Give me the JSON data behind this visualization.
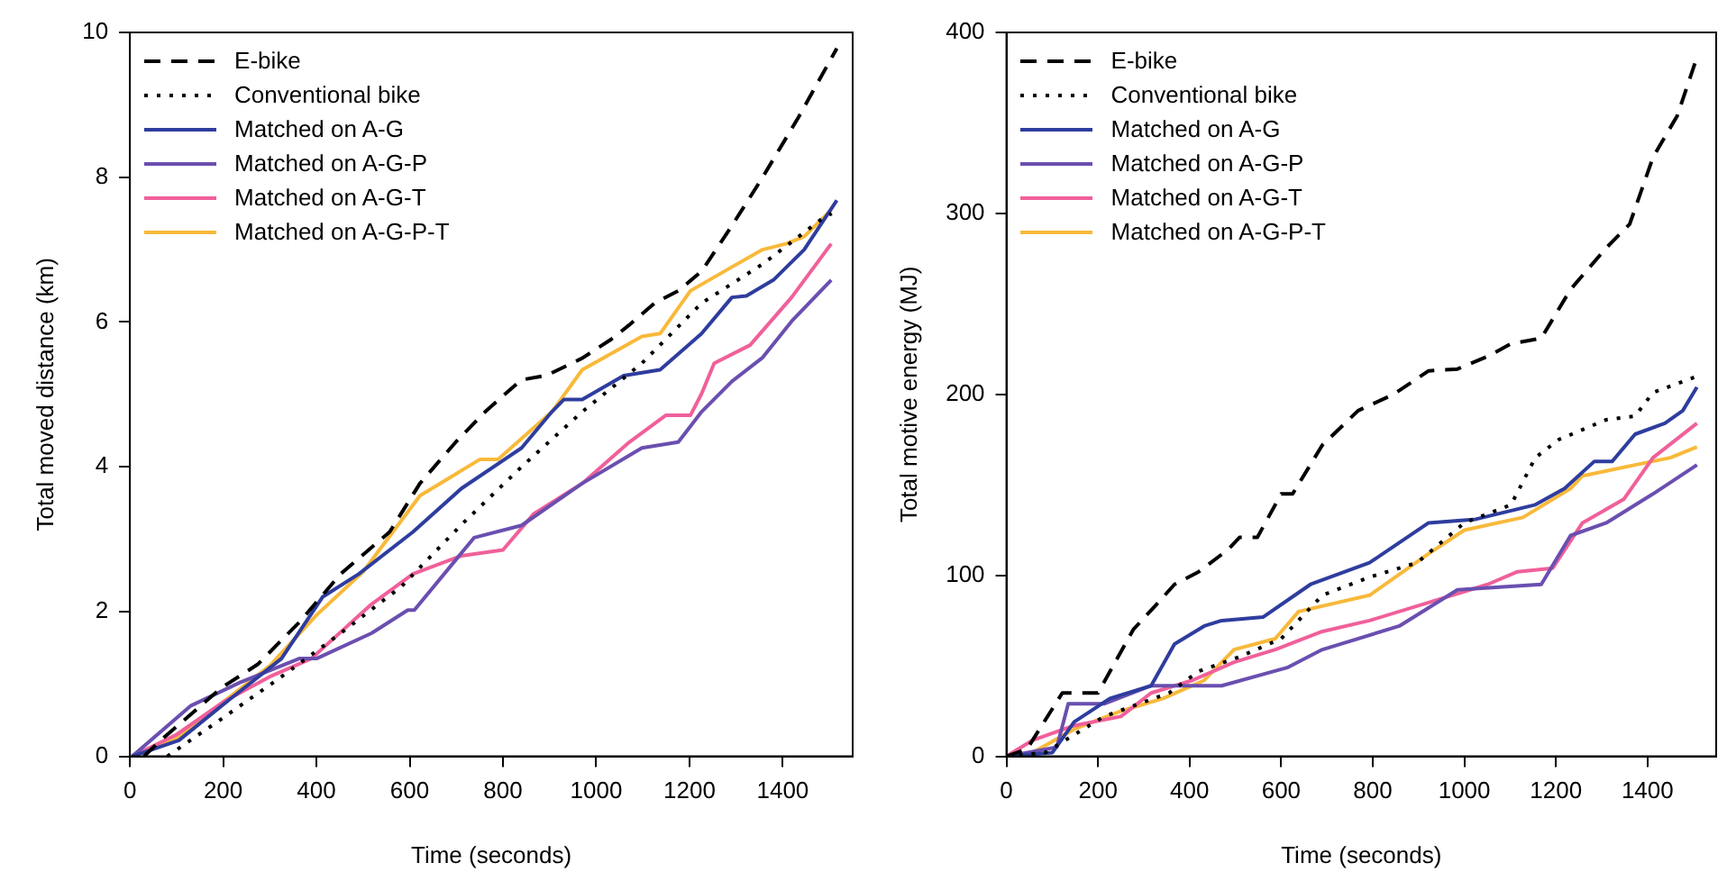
{
  "chart_data": [
    {
      "type": "line",
      "xlabel": "Time (seconds)",
      "ylabel": "Total moved distance (km)",
      "xlim": [
        0,
        1550
      ],
      "ylim": [
        0,
        10
      ],
      "xticks": [
        0,
        200,
        400,
        600,
        800,
        1000,
        1200,
        1400
      ],
      "yticks": [
        0,
        2,
        4,
        6,
        8,
        10
      ],
      "grid": false,
      "legend": "top left",
      "marker": "none",
      "series": [
        {
          "name": "E-bike",
          "color": "#000000",
          "line_style": "dashed",
          "x": [
            30,
            66,
            197,
            274,
            363,
            452,
            557,
            622,
            700,
            762,
            839,
            893,
            970,
            1032,
            1071,
            1125,
            1176,
            1226,
            1291,
            1357,
            1434,
            1516
          ],
          "values": [
            0,
            0.22,
            0.95,
            1.27,
            1.85,
            2.52,
            3.1,
            3.77,
            4.35,
            4.76,
            5.2,
            5.26,
            5.5,
            5.76,
            5.96,
            6.26,
            6.43,
            6.7,
            7.33,
            8.0,
            8.83,
            9.78
          ]
        },
        {
          "name": "Conventional bike",
          "color": "#000000",
          "line_style": "dotted",
          "x": [
            80,
            197,
            325,
            452,
            583,
            711,
            840,
            970,
            1098,
            1226,
            1357,
            1485,
            1505
          ],
          "values": [
            0,
            0.52,
            1.1,
            1.7,
            2.35,
            3.2,
            4.0,
            4.76,
            5.43,
            6.26,
            6.8,
            7.43,
            7.5
          ]
        },
        {
          "name": "Matched on A-G",
          "color": "#2e3d9e",
          "line_style": "solid",
          "x": [
            5,
            105,
            197,
            325,
            413,
            491,
            607,
            711,
            840,
            905,
            931,
            970,
            1059,
            1137,
            1226,
            1291,
            1322,
            1380,
            1446,
            1516
          ],
          "values": [
            0,
            0.22,
            0.7,
            1.35,
            2.2,
            2.52,
            3.1,
            3.7,
            4.26,
            4.76,
            4.93,
            4.93,
            5.26,
            5.34,
            5.84,
            6.34,
            6.36,
            6.58,
            7.0,
            7.68
          ]
        },
        {
          "name": "Matched on A-G-P",
          "color": "#6a4fb0",
          "line_style": "solid",
          "x": [
            5,
            131,
            236,
            363,
            400,
            518,
            596,
            610,
            738,
            840,
            970,
            1098,
            1176,
            1226,
            1291,
            1357,
            1419,
            1504
          ],
          "values": [
            0,
            0.7,
            1.02,
            1.35,
            1.35,
            1.7,
            2.02,
            2.02,
            3.02,
            3.19,
            3.77,
            4.26,
            4.34,
            4.76,
            5.18,
            5.51,
            6.01,
            6.58
          ]
        },
        {
          "name": "Matched on A-G-T",
          "color": "#f0609a",
          "line_style": "solid",
          "x": [
            5,
            100,
            200,
            300,
            389,
            518,
            607,
            711,
            800,
            866,
            970,
            1071,
            1149,
            1202,
            1226,
            1253,
            1330,
            1419,
            1504
          ],
          "values": [
            0,
            0.3,
            0.75,
            1.1,
            1.35,
            2.1,
            2.52,
            2.77,
            2.85,
            3.35,
            3.77,
            4.34,
            4.71,
            4.71,
            5.01,
            5.43,
            5.68,
            6.34,
            7.08
          ]
        },
        {
          "name": "Matched on A-G-P-T",
          "color": "#f8b93a",
          "line_style": "solid",
          "x": [
            5,
            100,
            200,
            300,
            400,
            500,
            622,
            750,
            789,
            905,
            970,
            1098,
            1137,
            1202,
            1291,
            1357,
            1407,
            1446,
            1504
          ],
          "values": [
            0,
            0.25,
            0.75,
            1.25,
            1.95,
            2.55,
            3.6,
            4.1,
            4.1,
            4.76,
            5.34,
            5.8,
            5.84,
            6.43,
            6.76,
            7.0,
            7.08,
            7.18,
            7.55
          ]
        }
      ]
    },
    {
      "type": "line",
      "xlabel": "Time (seconds)",
      "ylabel": "Total motive energy (MJ)",
      "xlim": [
        0,
        1550
      ],
      "ylim": [
        0,
        400
      ],
      "xticks": [
        0,
        200,
        400,
        600,
        800,
        1000,
        1200,
        1400
      ],
      "yticks": [
        0,
        100,
        200,
        300,
        400
      ],
      "grid": false,
      "legend": "top left",
      "marker": "none",
      "series": [
        {
          "name": "E-bike",
          "color": "#000000",
          "line_style": "dashed",
          "x": [
            0,
            45,
            122,
            200,
            277,
            328,
            367,
            420,
            483,
            509,
            548,
            600,
            625,
            690,
            768,
            845,
            922,
            985,
            1051,
            1102,
            1168,
            1232,
            1310,
            1361,
            1412,
            1465,
            1505
          ],
          "values": [
            0,
            4,
            35,
            35,
            70,
            84,
            95,
            102,
            114,
            121,
            121,
            145,
            145,
            172,
            191,
            200,
            213,
            214,
            221,
            228,
            231,
            258,
            281,
            294,
            331,
            354,
            384
          ]
        },
        {
          "name": "Conventional bike",
          "color": "#000000",
          "line_style": "dotted",
          "x": [
            0,
            84,
            213,
            355,
            420,
            509,
            600,
            690,
            793,
            897,
            1000,
            1102,
            1155,
            1206,
            1310,
            1373,
            1412,
            1508
          ],
          "values": [
            0,
            2,
            22,
            35,
            47,
            55,
            65,
            89,
            99,
            107,
            129,
            139,
            165,
            175,
            186,
            188,
            201,
            210
          ]
        },
        {
          "name": "Matched on A-G",
          "color": "#2e3d9e",
          "line_style": "solid",
          "x": [
            0,
            100,
            148,
            226,
            316,
            367,
            432,
            470,
            561,
            664,
            793,
            922,
            1025,
            1155,
            1219,
            1284,
            1323,
            1373,
            1438,
            1477,
            1508
          ],
          "values": [
            0,
            2,
            19,
            32,
            39,
            62,
            72,
            75,
            77,
            95,
            107,
            129,
            131,
            139,
            148,
            163,
            163,
            178,
            184,
            191,
            204
          ]
        },
        {
          "name": "Matched on A-G-P",
          "color": "#6a4fb0",
          "line_style": "solid",
          "x": [
            0,
            110,
            135,
            213,
            316,
            470,
            613,
            690,
            858,
            985,
            1168,
            1232,
            1310,
            1412,
            1508
          ],
          "values": [
            0,
            5,
            29,
            29,
            39,
            39,
            49,
            59,
            72,
            92,
            95,
            122,
            129,
            145,
            161
          ]
        },
        {
          "name": "Matched on A-G-T",
          "color": "#f0609a",
          "line_style": "solid",
          "x": [
            0,
            58,
            148,
            250,
            316,
            406,
            497,
            587,
            690,
            793,
            922,
            1051,
            1116,
            1193,
            1258,
            1348,
            1412,
            1508
          ],
          "values": [
            0,
            9,
            17,
            22,
            35,
            42,
            52,
            59,
            69,
            75,
            85,
            95,
            102,
            104,
            129,
            142,
            165,
            184
          ]
        },
        {
          "name": "Matched on A-G-P-T",
          "color": "#f8b93a",
          "line_style": "solid",
          "x": [
            0,
            50,
            148,
            250,
            342,
            432,
            497,
            587,
            638,
            793,
            922,
            1000,
            1128,
            1232,
            1258,
            1373,
            1450,
            1508
          ],
          "values": [
            0,
            1,
            15,
            25,
            32,
            42,
            59,
            65,
            80,
            89,
            112,
            125,
            132,
            148,
            155,
            161,
            165,
            171
          ]
        }
      ]
    }
  ]
}
